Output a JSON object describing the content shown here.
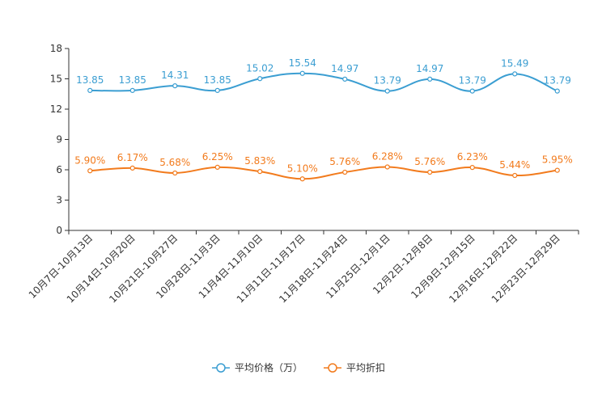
{
  "chart_data": {
    "type": "line",
    "title": "",
    "xlabel": "",
    "ylabel": "",
    "ylim": [
      0,
      18
    ],
    "yticks": [
      0,
      3,
      6,
      9,
      12,
      15,
      18
    ],
    "grid": false,
    "legend_position": "bottom-center",
    "categories": [
      "10月7日-10月13日",
      "10月14日-10月20日",
      "10月21日-10月27日",
      "10月28日-11月3日",
      "11月4日-11月10日",
      "11月11日-11月17日",
      "11月18日-11月24日",
      "11月25日-12月1日",
      "12月2日-12月8日",
      "12月9日-12月15日",
      "12月16日-12月22日",
      "12月23日-12月29日"
    ],
    "series": [
      {
        "name": "平均价格（万）",
        "color": "#3b9ed2",
        "values": [
          13.85,
          13.85,
          14.31,
          13.85,
          15.02,
          15.54,
          14.97,
          13.79,
          14.97,
          13.79,
          15.49,
          13.79
        ],
        "labels": [
          "13.85",
          "13.85",
          "14.31",
          "13.85",
          "15.02",
          "15.54",
          "14.97",
          "13.79",
          "14.97",
          "13.79",
          "15.49",
          "13.79"
        ]
      },
      {
        "name": "平均折扣",
        "color": "#f27b1d",
        "values": [
          5.9,
          6.17,
          5.68,
          6.25,
          5.83,
          5.1,
          5.76,
          6.28,
          5.76,
          6.23,
          5.44,
          5.95
        ],
        "labels": [
          "5.90%",
          "6.17%",
          "5.68%",
          "6.25%",
          "5.83%",
          "5.10%",
          "5.76%",
          "6.28%",
          "5.76%",
          "6.23%",
          "5.44%",
          "5.95%"
        ]
      }
    ]
  }
}
